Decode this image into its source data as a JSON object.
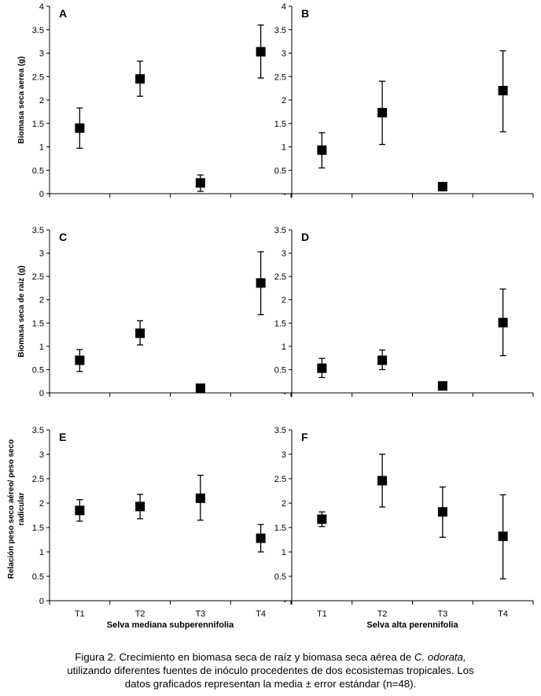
{
  "chart_data": [
    {
      "type": "scatter",
      "panel": "A",
      "categories": [
        "T1",
        "T2",
        "T3",
        "T4"
      ],
      "ylabel": "Biomasa seca aerea (g)",
      "ylim": [
        0,
        4
      ],
      "yticks": [
        "0",
        "0.5",
        "1",
        "1.5",
        "2",
        "2.5",
        "3",
        "3.5",
        "4"
      ],
      "values": [
        1.4,
        2.45,
        0.23,
        3.03
      ],
      "err_low": [
        0.97,
        2.08,
        0.05,
        2.47
      ],
      "err_high": [
        1.83,
        2.83,
        0.4,
        3.6
      ]
    },
    {
      "type": "scatter",
      "panel": "B",
      "categories": [
        "T1",
        "T2",
        "T3",
        "T4"
      ],
      "ylim": [
        0,
        4
      ],
      "yticks": [
        "-",
        "0.5",
        "1",
        "1.5",
        "2",
        "2.5",
        "3",
        "3.5",
        "4"
      ],
      "values": [
        0.93,
        1.73,
        0.15,
        2.2
      ],
      "err_low": [
        0.55,
        1.05,
        null,
        1.32
      ],
      "err_high": [
        1.3,
        2.4,
        null,
        3.05
      ]
    },
    {
      "type": "scatter",
      "panel": "C",
      "categories": [
        "T1",
        "T2",
        "T3",
        "T4"
      ],
      "ylabel": "Biomasa seca de raiz (g)",
      "ylim": [
        0,
        3.5
      ],
      "yticks": [
        "0",
        "0.5",
        "1",
        "1.5",
        "2",
        "2.5",
        "3",
        "3.5"
      ],
      "values": [
        0.7,
        1.28,
        0.1,
        2.36
      ],
      "err_low": [
        0.46,
        1.03,
        null,
        1.68
      ],
      "err_high": [
        0.93,
        1.55,
        null,
        3.03
      ]
    },
    {
      "type": "scatter",
      "panel": "D",
      "categories": [
        "T1",
        "T2",
        "T3",
        "T4"
      ],
      "ylim": [
        0,
        3.5
      ],
      "yticks": [
        "-",
        "0.5",
        "1",
        "1.5",
        "2",
        "2.5",
        "3",
        "3.5"
      ],
      "values": [
        0.53,
        0.7,
        0.15,
        1.51
      ],
      "err_low": [
        0.33,
        0.5,
        null,
        0.8
      ],
      "err_high": [
        0.74,
        0.92,
        null,
        2.23
      ]
    },
    {
      "type": "scatter",
      "panel": "E",
      "categories": [
        "T1",
        "T2",
        "T3",
        "T4"
      ],
      "ylabel": "Relación peso seco aéreo/ peso seco radicular",
      "xlabel": "Selva mediana subperennifolia",
      "ylim": [
        0,
        3.5
      ],
      "yticks": [
        "0",
        "0.5",
        "1",
        "1.5",
        "2",
        "2.5",
        "3",
        "3.5"
      ],
      "values": [
        1.85,
        1.93,
        2.1,
        1.28
      ],
      "err_low": [
        1.63,
        1.68,
        1.65,
        1.0
      ],
      "err_high": [
        2.07,
        2.18,
        2.57,
        1.56
      ]
    },
    {
      "type": "scatter",
      "panel": "F",
      "categories": [
        "T1",
        "T2",
        "T3",
        "T4"
      ],
      "xlabel": "Selva alta perennifolia",
      "ylim": [
        0,
        3.5
      ],
      "yticks": [
        "-",
        "0.5",
        "1",
        "1.5",
        "2",
        "2.5",
        "3",
        "3.5"
      ],
      "values": [
        1.67,
        2.46,
        1.82,
        1.32
      ],
      "err_low": [
        1.52,
        1.92,
        1.3,
        0.45
      ],
      "err_high": [
        1.82,
        3.0,
        2.33,
        2.17
      ]
    }
  ],
  "caption": {
    "line1_prefix": "Figura 2. Crecimiento en biomasa seca de raíz y biomasa seca aérea de ",
    "line1_species": "C. odorata,",
    "line2": "utilizando diferentes fuentes de inóculo procedentes de dos ecosistemas tropicales. Los",
    "line3": "datos graficados representan la media ± error estándar (n=48)."
  }
}
